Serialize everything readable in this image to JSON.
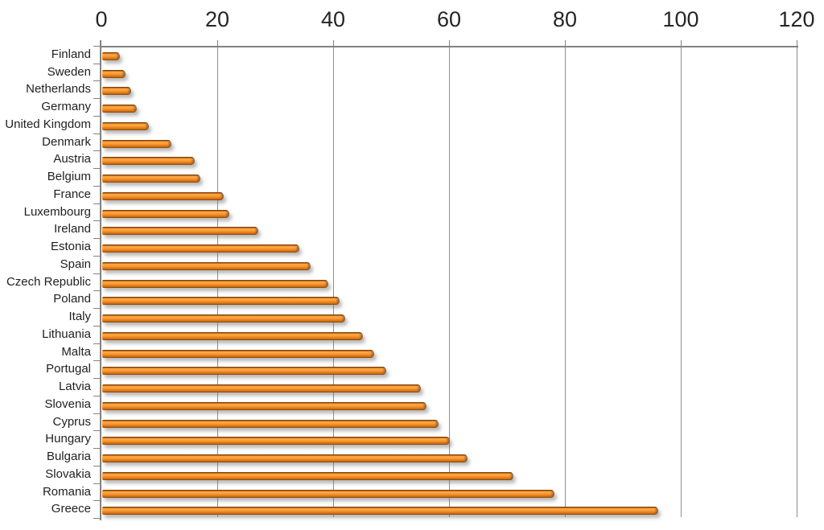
{
  "chart_data": {
    "type": "bar",
    "orientation": "horizontal",
    "title": "",
    "xlabel": "",
    "ylabel": "",
    "xlim": [
      0,
      120
    ],
    "x_ticks": [
      0,
      20,
      40,
      60,
      80,
      100,
      120
    ],
    "grid": true,
    "legend": null,
    "categories": [
      "Finland",
      "Sweden",
      "Netherlands",
      "Germany",
      "United Kingdom",
      "Denmark",
      "Austria",
      "Belgium",
      "France",
      "Luxembourg",
      "Ireland",
      "Estonia",
      "Spain",
      "Czech Republic",
      "Poland",
      "Italy",
      "Lithuania",
      "Malta",
      "Portugal",
      "Latvia",
      "Slovenia",
      "Cyprus",
      "Hungary",
      "Bulgaria",
      "Slovakia",
      "Romania",
      "Greece"
    ],
    "values": [
      3,
      4,
      5,
      6,
      8,
      12,
      16,
      17,
      21,
      22,
      27,
      34,
      36,
      39,
      41,
      42,
      45,
      47,
      49,
      55,
      56,
      58,
      60,
      63,
      71,
      78,
      96
    ],
    "colors": {
      "bar_main": "#EE8A25",
      "bar_highlight": "#FFA843",
      "bar_edge_dark": "#7B430A",
      "bar_shadow": "rgba(118,118,118,0.5)",
      "gridline": "#8E8E8E",
      "axis": "#828282",
      "tick_label": "#262626",
      "category_label": "#1F1F1F",
      "background": "#FFFFFF"
    }
  }
}
